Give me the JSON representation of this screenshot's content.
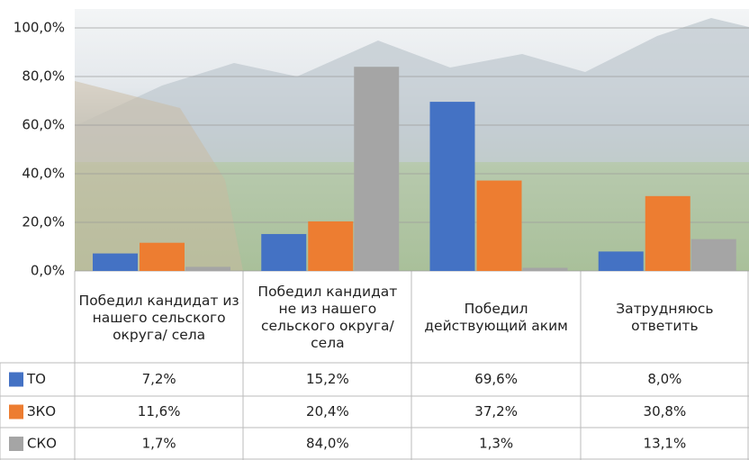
{
  "chart_data": {
    "type": "bar",
    "categories": [
      "Победил кандидат из нашего сельского округа/ села",
      "Победил кандидат не из нашего сельского округа/села",
      "Победил действующий аким",
      "Затрудняюсь ответить"
    ],
    "series": [
      {
        "name": "ТО",
        "color": "#4472c4",
        "values": [
          7.2,
          15.2,
          69.6,
          8.0
        ],
        "value_labels": [
          "7,2%",
          "15,2%",
          "69,6%",
          "8,0%"
        ]
      },
      {
        "name": "ЗКО",
        "color": "#ed7d31",
        "values": [
          11.6,
          20.4,
          37.2,
          30.8
        ],
        "value_labels": [
          "11,6%",
          "20,4%",
          "37,2%",
          "30,8%"
        ]
      },
      {
        "name": "СКО",
        "color": "#a5a5a5",
        "values": [
          1.7,
          84.0,
          1.3,
          13.1
        ],
        "value_labels": [
          "1,7%",
          "84,0%",
          "1,3%",
          "13,1%"
        ]
      }
    ],
    "ylim": [
      0,
      100
    ],
    "yticks": [
      {
        "value": 0,
        "label": "0,0%"
      },
      {
        "value": 20,
        "label": "20,0%"
      },
      {
        "value": 40,
        "label": "40,0%"
      },
      {
        "value": 60,
        "label": "60,0%"
      },
      {
        "value": 80,
        "label": "80,0%"
      },
      {
        "value": 100,
        "label": "100,0%"
      }
    ],
    "grid": true
  }
}
